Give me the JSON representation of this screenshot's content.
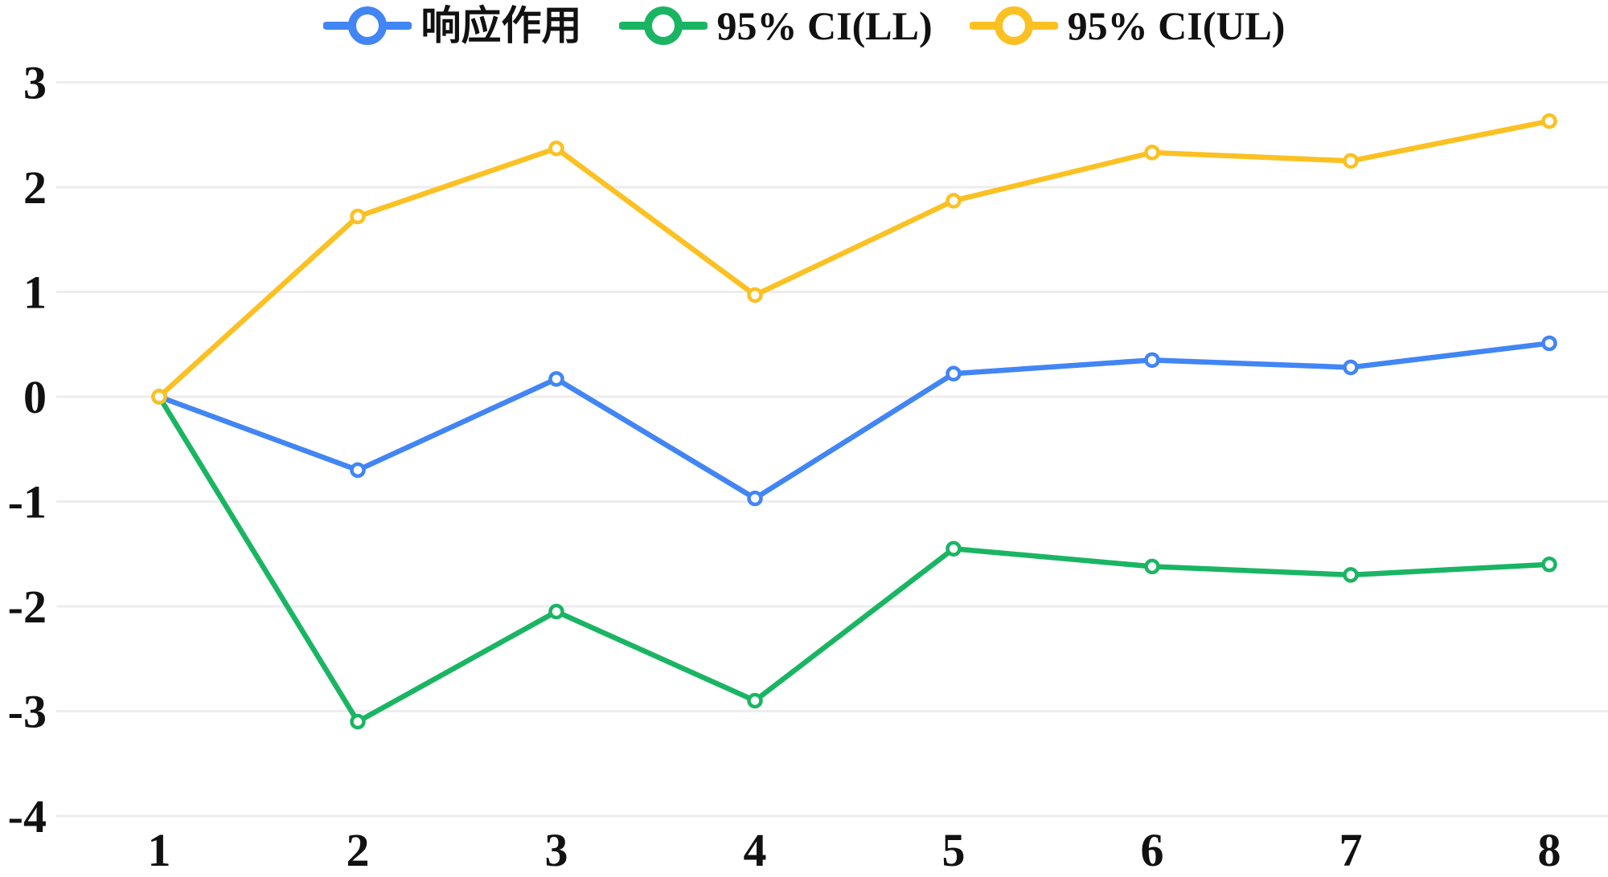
{
  "chart_data": {
    "type": "line",
    "title": "",
    "xlabel": "",
    "ylabel": "",
    "x_categories": [
      "1",
      "2",
      "3",
      "4",
      "5",
      "6",
      "7",
      "8"
    ],
    "y_ticks": [
      "3",
      "2",
      "1",
      "0",
      "-1",
      "-2",
      "-3",
      "-4"
    ],
    "ylim": [
      -4,
      3
    ],
    "grid": "horizontal-only",
    "legend_position": "top-center",
    "background_color": "#ffffff",
    "gridline_color": "#ededed",
    "text_color": "#111111",
    "marker_style": "open-circle",
    "series": [
      {
        "name": "响应作用",
        "color": "#4285f4",
        "values": [
          0,
          -0.7,
          0.17,
          -0.97,
          0.22,
          0.35,
          0.28,
          0.51
        ]
      },
      {
        "name": "95% CI(LL)",
        "color": "#1ab563",
        "values": [
          0,
          -3.1,
          -2.05,
          -2.9,
          -1.45,
          -1.62,
          -1.7,
          -1.6
        ]
      },
      {
        "name": "95% CI(UL)",
        "color": "#fbc123",
        "values": [
          0,
          1.72,
          2.37,
          0.97,
          1.87,
          2.33,
          2.25,
          2.63
        ]
      }
    ]
  }
}
